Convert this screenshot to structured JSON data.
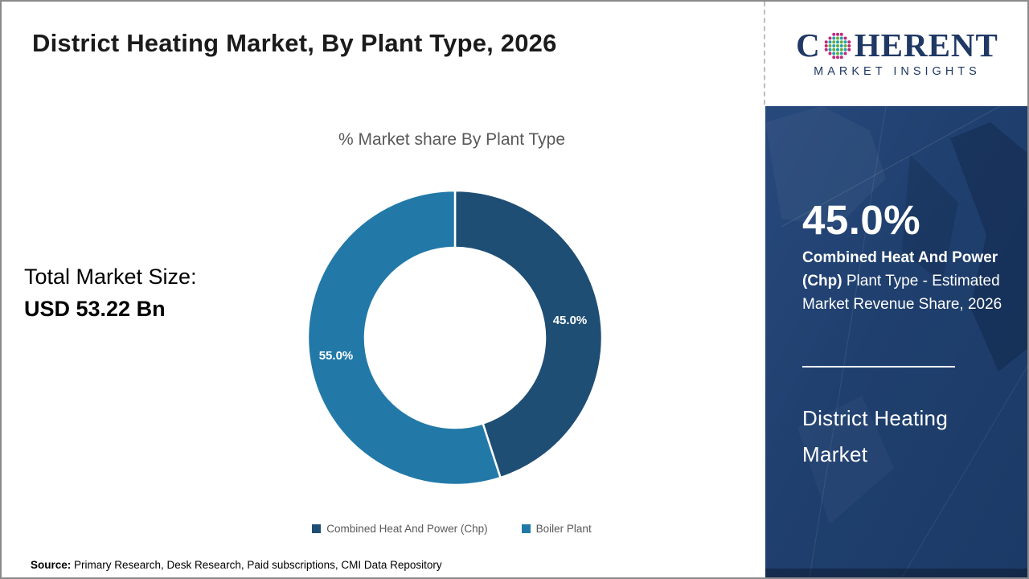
{
  "header": {
    "title": "District Heating Market, By Plant Type, 2026"
  },
  "logo": {
    "word_c": "C",
    "word_rest": "HERENT",
    "subtitle": "MARKET INSIGHTS"
  },
  "chart": {
    "title": "% Market share By Plant Type",
    "slice_labels": {
      "chp": "45.0%",
      "boiler": "55.0%"
    },
    "legend": [
      {
        "label": "Combined Heat And Power (Chp)",
        "color": "#1F4E74"
      },
      {
        "label": "Boiler Plant",
        "color": "#2279A8"
      }
    ]
  },
  "total_market": {
    "label": "Total Market Size:",
    "value": "USD 53.22 Bn"
  },
  "sidebar": {
    "stat_value": "45.0%",
    "stat_bold": "Combined Heat And Power (Chp)",
    "stat_rest": " Plant Type - Estimated Market Revenue Share, 2026",
    "market_name_line1": "District Heating",
    "market_name_line2": "Market"
  },
  "source": {
    "label": "Source:",
    "text": " Primary Research, Desk Research, Paid subscriptions, CMI Data Repository"
  },
  "chart_data": {
    "type": "pie",
    "donut": true,
    "title": "% Market share By Plant Type",
    "categories": [
      "Combined Heat And Power (Chp)",
      "Boiler Plant"
    ],
    "values": [
      45.0,
      55.0
    ],
    "unit": "%",
    "colors": [
      "#1F4E74",
      "#2279A8"
    ],
    "start_angle_deg": 0,
    "direction": "clockwise",
    "legend_position": "bottom",
    "data_labels": [
      "45.0%",
      "55.0%"
    ],
    "annotations": [
      "Total Market Size: USD 53.22 Bn",
      "45.0% Combined Heat And Power (Chp) Plant Type - Estimated Market Revenue Share, 2026"
    ]
  }
}
